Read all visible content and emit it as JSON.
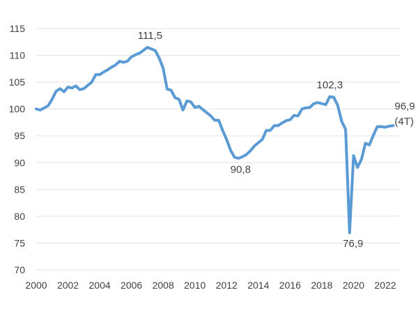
{
  "chart_data": {
    "type": "line",
    "title": "",
    "xlabel": "",
    "ylabel": "",
    "xlim": [
      2000,
      2022.5
    ],
    "ylim": [
      70,
      115
    ],
    "grid": true,
    "legend": "none",
    "x_ticks": [
      "2000",
      "2002",
      "2004",
      "2006",
      "2008",
      "2010",
      "2012",
      "2014",
      "2016",
      "2018",
      "2020",
      "2022"
    ],
    "y_ticks": [
      "70",
      "75",
      "80",
      "85",
      "90",
      "95",
      "100",
      "105",
      "110",
      "115"
    ],
    "line_color": "#5b9bd5",
    "series": [
      {
        "x": [
          2000.0,
          2000.25,
          2000.5,
          2000.75,
          2001.0,
          2001.25,
          2001.5,
          2001.75,
          2002.0,
          2002.25,
          2002.5,
          2002.75,
          2003.0,
          2003.25,
          2003.5,
          2003.75,
          2004.0,
          2004.25,
          2004.5,
          2004.75,
          2005.0,
          2005.25,
          2005.5,
          2005.75,
          2006.0,
          2006.25,
          2006.5,
          2006.75,
          2007.0,
          2007.25,
          2007.5,
          2007.75,
          2008.0,
          2008.25,
          2008.5,
          2008.75,
          2009.0,
          2009.25,
          2009.5,
          2009.75,
          2010.0,
          2010.25,
          2010.5,
          2010.75,
          2011.0,
          2011.25,
          2011.5,
          2011.75,
          2012.0,
          2012.25,
          2012.5,
          2012.75,
          2013.0,
          2013.25,
          2013.5,
          2013.75,
          2014.0,
          2014.25,
          2014.5,
          2014.75,
          2015.0,
          2015.25,
          2015.5,
          2015.75,
          2016.0,
          2016.25,
          2016.5,
          2016.75,
          2017.0,
          2017.25,
          2017.5,
          2017.75,
          2018.0,
          2018.25,
          2018.5,
          2018.75,
          2019.0,
          2019.25,
          2019.5,
          2019.75,
          2020.0,
          2020.25,
          2020.5,
          2020.75,
          2021.0,
          2021.25,
          2021.5,
          2021.75,
          2022.0,
          2022.25,
          2022.5
        ],
        "values": [
          100.0,
          99.8,
          100.2,
          100.6,
          101.8,
          103.3,
          103.8,
          103.2,
          104.1,
          103.9,
          104.3,
          103.6,
          103.8,
          104.4,
          105.0,
          106.4,
          106.4,
          106.9,
          107.3,
          107.8,
          108.2,
          108.9,
          108.7,
          108.9,
          109.7,
          110.1,
          110.4,
          110.9,
          111.5,
          111.2,
          110.9,
          109.5,
          107.6,
          103.7,
          103.5,
          102.1,
          101.8,
          99.8,
          101.5,
          101.3,
          100.3,
          100.5,
          99.9,
          99.3,
          98.7,
          97.9,
          97.9,
          96.0,
          94.3,
          92.3,
          91.0,
          90.8,
          91.1,
          91.5,
          92.2,
          93.1,
          93.7,
          94.3,
          96.0,
          96.0,
          96.9,
          96.9,
          97.4,
          97.8,
          98.0,
          98.8,
          98.7,
          100.0,
          100.2,
          100.3,
          101.0,
          101.2,
          101.0,
          100.8,
          102.3,
          102.2,
          100.7,
          97.7,
          96.2,
          76.9,
          91.3,
          89.1,
          90.6,
          93.6,
          93.3,
          95.1,
          96.7,
          96.7,
          96.6,
          96.8,
          96.9
        ]
      }
    ],
    "annotations": [
      {
        "label": "111,5",
        "x": 2007.0,
        "y": 111.5
      },
      {
        "label": "90,8",
        "x": 2012.75,
        "y": 90.8
      },
      {
        "label": "102,3",
        "x": 2018.5,
        "y": 102.3
      },
      {
        "label": "76,9",
        "x": 2019.75,
        "y": 76.9
      },
      {
        "label": "96,9",
        "x": 2022.5,
        "y": 96.9
      },
      {
        "label": "(4T)",
        "x": 2022.5,
        "y": 96.9
      }
    ]
  }
}
